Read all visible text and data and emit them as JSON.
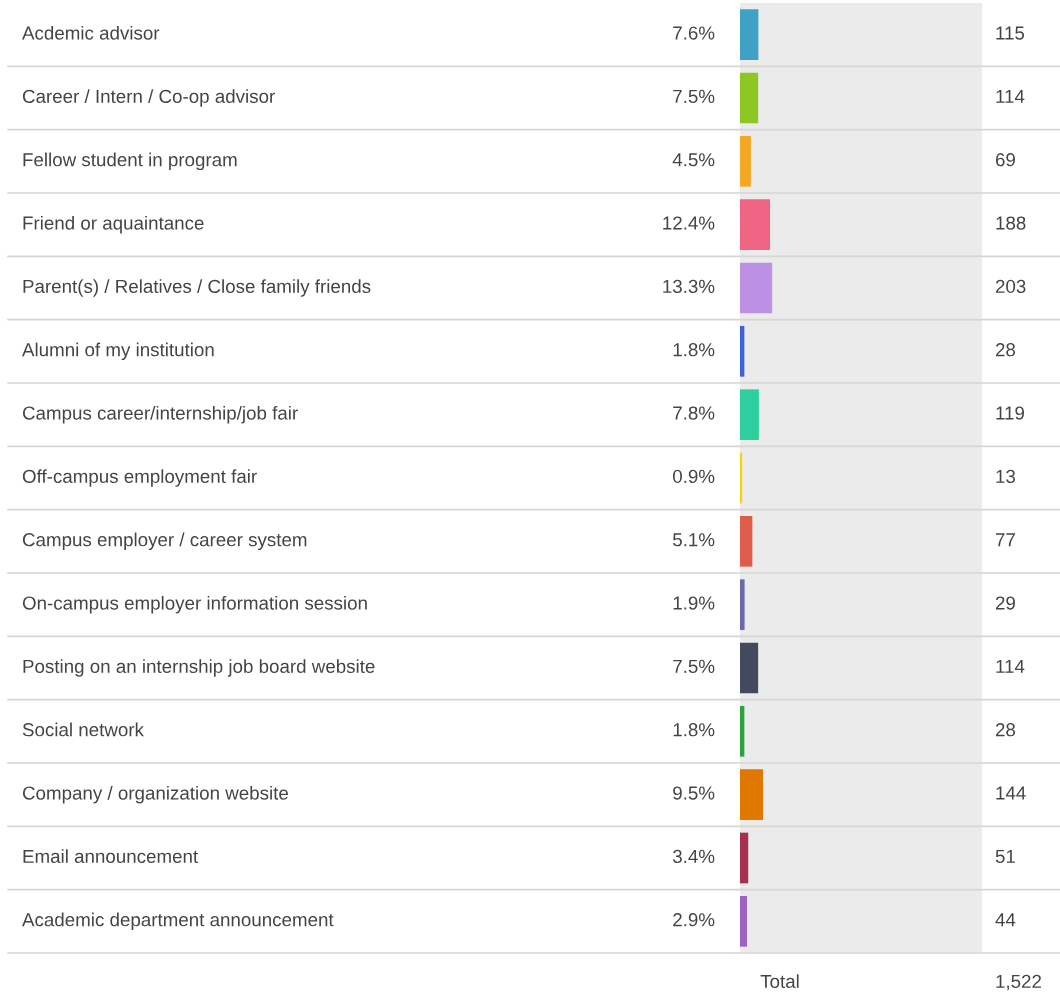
{
  "chart_data": {
    "type": "bar",
    "orientation": "horizontal",
    "categories": [
      "Acdemic advisor",
      "Career / Intern / Co-op advisor",
      "Fellow student in program",
      "Friend or aquaintance",
      "Parent(s) / Relatives / Close family friends",
      "Alumni of my institution",
      "Campus career/internship/job fair",
      "Off-campus employment fair",
      "Campus employer / career system",
      "On-campus employer information session",
      "Posting on an internship job board website",
      "Social network",
      "Company / organization website",
      "Email announcement",
      "Academic department announcement"
    ],
    "values": [
      7.6,
      7.5,
      4.5,
      12.4,
      13.3,
      1.8,
      7.8,
      0.9,
      5.1,
      1.9,
      7.5,
      1.8,
      9.5,
      3.4,
      2.9
    ],
    "value_labels": [
      "7.6%",
      "7.5%",
      "4.5%",
      "12.4%",
      "13.3%",
      "1.8%",
      "7.8%",
      "0.9%",
      "5.1%",
      "1.9%",
      "7.5%",
      "1.8%",
      "9.5%",
      "3.4%",
      "2.9%"
    ],
    "colors": [
      "#3fa2c4",
      "#8ec724",
      "#f5a623",
      "#ef6583",
      "#bc90e2",
      "#3d63d6",
      "#2ecf9e",
      "#f7d50e",
      "#e05c4a",
      "#6a6aa8",
      "#434a5e",
      "#2aa33a",
      "#e07800",
      "#a8304f",
      "#9e62c4"
    ],
    "xlim": [
      0,
      100
    ],
    "annotations": [
      "115",
      "114",
      "69",
      "188",
      "203",
      "28",
      "119",
      "13",
      "77",
      "29",
      "114",
      "28",
      "144",
      "51",
      "44",
      "Total",
      "1,522"
    ]
  }
}
